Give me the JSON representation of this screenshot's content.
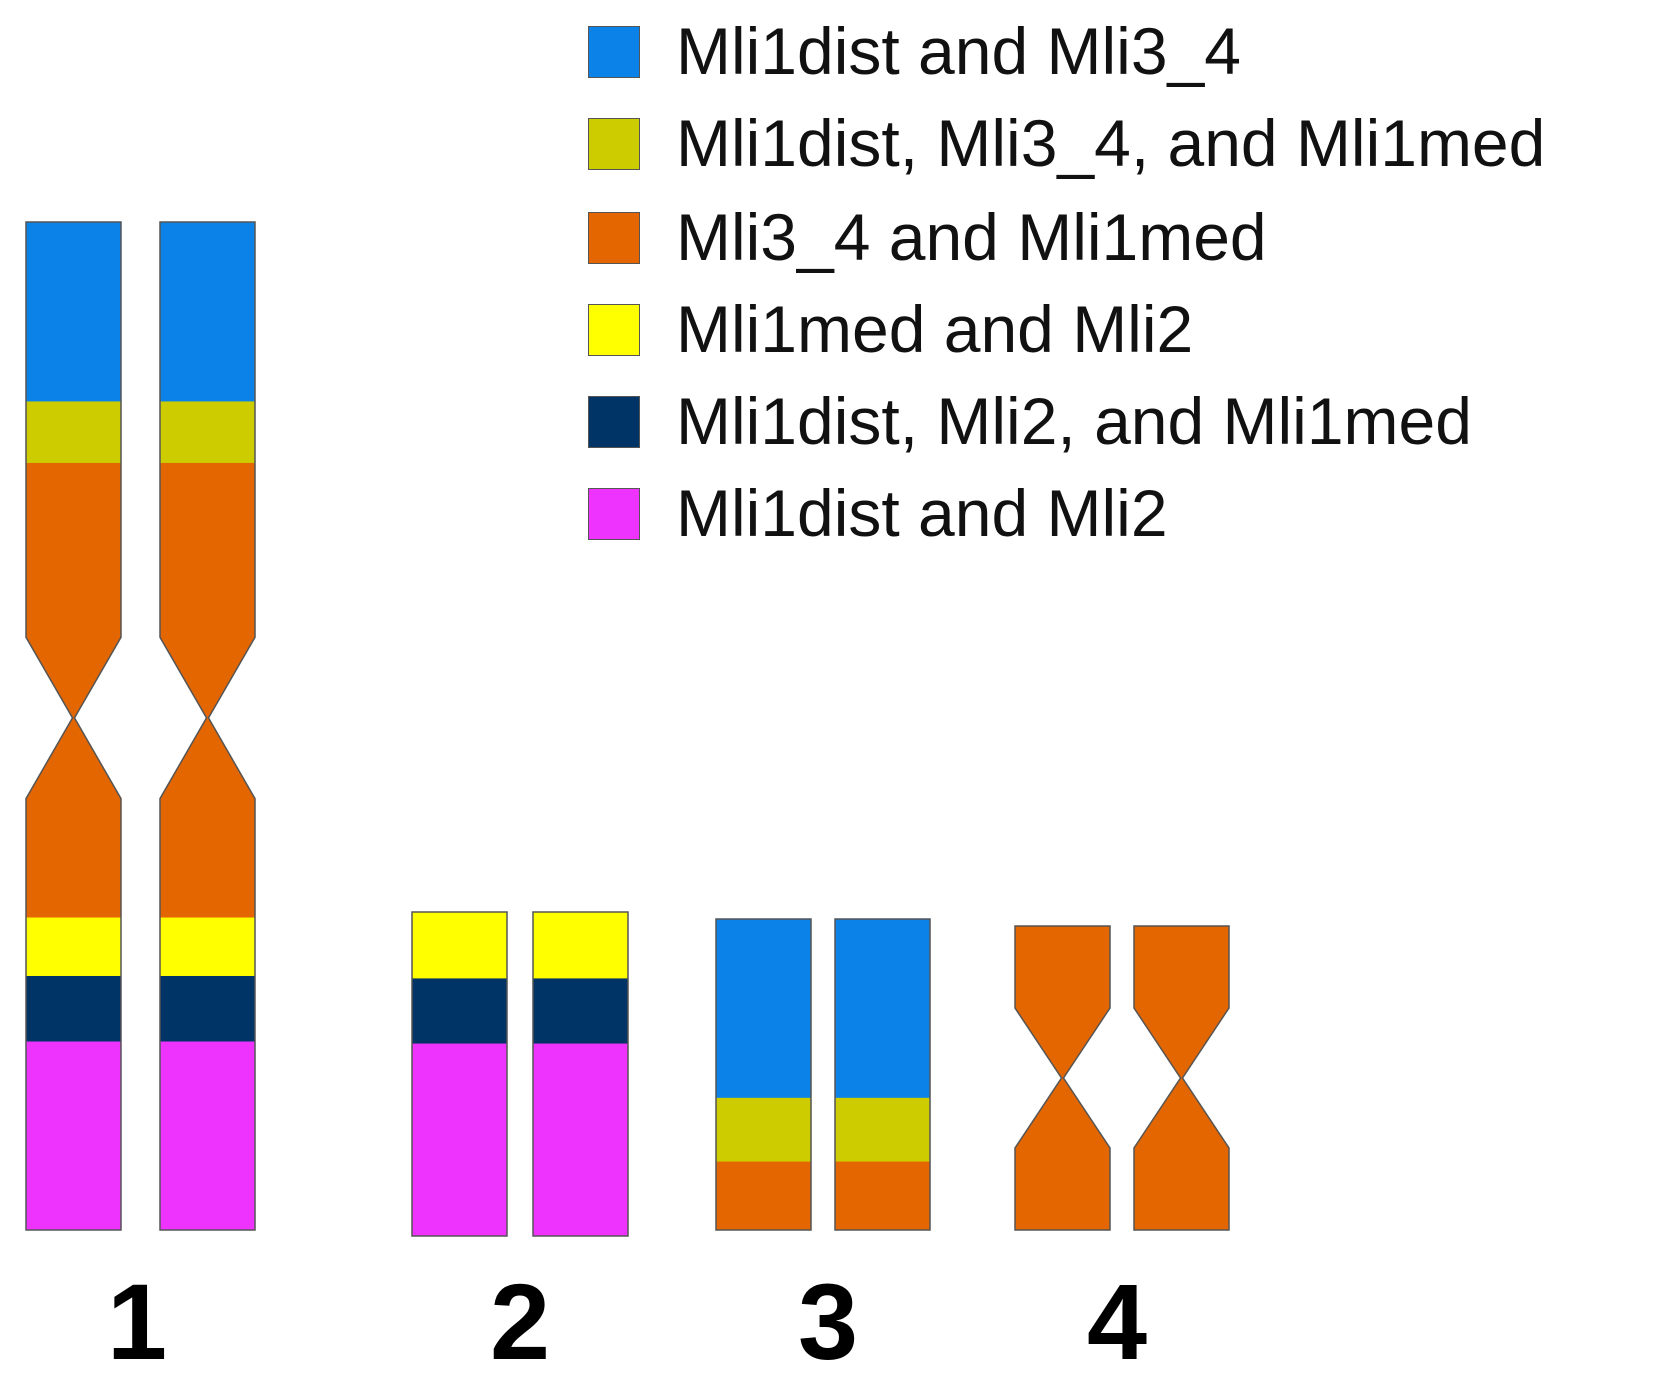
{
  "colors": {
    "blue": "#0a82e8",
    "olive": "#cccc00",
    "orange": "#e36600",
    "yellow": "#ffff00",
    "navy": "#003366",
    "magenta": "#ee33ff",
    "outline": "#555555"
  },
  "legend": [
    {
      "color": "blue",
      "label": "Mli1dist and Mli3_4"
    },
    {
      "color": "olive",
      "label": "Mli1dist, Mli3_4, and Mli1med"
    },
    {
      "color": "orange",
      "label": "Mli3_4 and Mli1med"
    },
    {
      "color": "yellow",
      "label": "Mli1med and Mli2"
    },
    {
      "color": "navy",
      "label": "Mli1dist, Mli2, and Mli1med"
    },
    {
      "color": "magenta",
      "label": "Mli1dist and Mli2"
    }
  ],
  "chromosomes": [
    {
      "label": "1",
      "bands": [
        {
          "color": "blue",
          "fraction": 0.178
        },
        {
          "color": "olive",
          "fraction": 0.061
        },
        {
          "color": "orange",
          "fraction": 0.451
        },
        {
          "color": "yellow",
          "fraction": 0.058
        },
        {
          "color": "navy",
          "fraction": 0.065
        },
        {
          "color": "magenta",
          "fraction": 0.187
        }
      ],
      "centromere_fraction": 0.492
    },
    {
      "label": "2",
      "bands": [
        {
          "color": "yellow",
          "fraction": 0.205
        },
        {
          "color": "navy",
          "fraction": 0.201
        },
        {
          "color": "magenta",
          "fraction": 0.594
        }
      ],
      "centromere_fraction": null
    },
    {
      "label": "3",
      "bands": [
        {
          "color": "blue",
          "fraction": 0.575
        },
        {
          "color": "olive",
          "fraction": 0.205
        },
        {
          "color": "orange",
          "fraction": 0.22
        }
      ],
      "centromere_fraction": null
    },
    {
      "label": "4",
      "bands": [
        {
          "color": "orange",
          "fraction": 1.0
        }
      ],
      "centromere_fraction": 0.5
    }
  ]
}
